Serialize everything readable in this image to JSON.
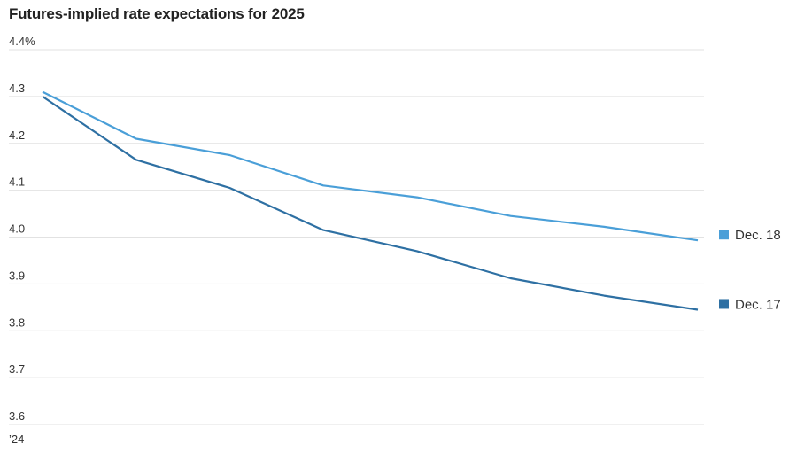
{
  "chart_data": {
    "type": "line",
    "title": "Futures-implied rate expectations for 2025",
    "y_tick_labels": [
      "4.4%",
      "4.3",
      "4.2",
      "4.1",
      "4.0",
      "3.9",
      "3.8",
      "3.7",
      "3.6"
    ],
    "y_ticks": [
      4.4,
      4.3,
      4.2,
      4.1,
      4.0,
      3.9,
      3.8,
      3.7,
      3.6
    ],
    "ylim": [
      3.6,
      4.4
    ],
    "x_start_label": "’24",
    "grid": true,
    "legend_placement": "right, at line ends",
    "series": [
      {
        "name": "Dec. 18",
        "color": "#4a9fd8",
        "values": [
          4.31,
          4.21,
          4.175,
          4.11,
          4.085,
          4.045,
          4.022,
          3.993
        ]
      },
      {
        "name": "Dec. 17",
        "color": "#2e70a3",
        "values": [
          4.3,
          4.165,
          4.105,
          4.015,
          3.97,
          3.912,
          3.875,
          3.845
        ]
      }
    ]
  }
}
